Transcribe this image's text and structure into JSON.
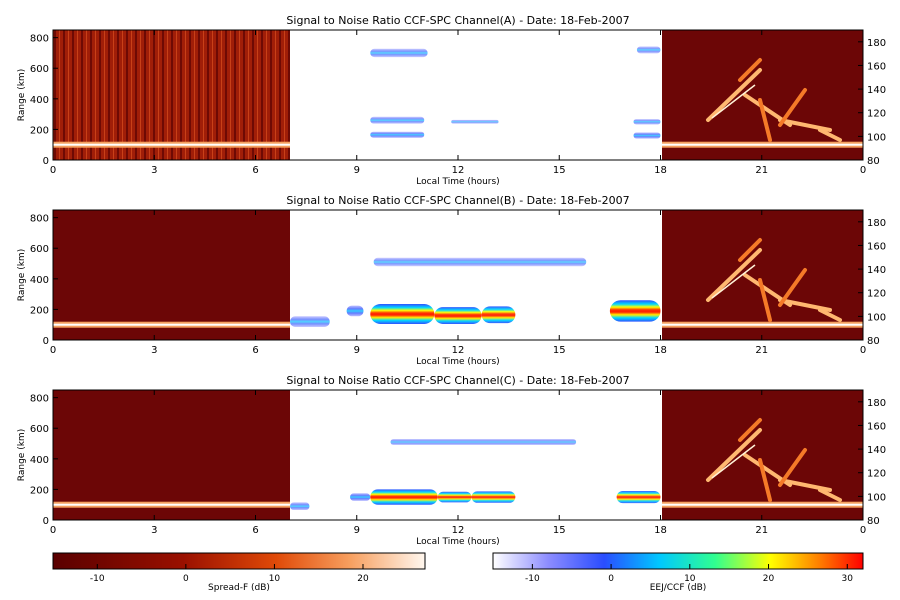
{
  "chart_data": [
    {
      "type": "heatmap",
      "title": "Signal to Noise Ratio CCF-SPC Channel(A) - Date: 18-Feb-2007",
      "xlabel": "Local Time (hours)",
      "ylabel": "Range (km)",
      "xticks": [
        "0",
        "3",
        "6",
        "9",
        "12",
        "15",
        "18",
        "21",
        "0"
      ],
      "yticks_left": [
        "0",
        "200",
        "400",
        "600",
        "800"
      ],
      "yticks_right": [
        "80",
        "100",
        "120",
        "140",
        "160",
        "180"
      ],
      "xlim": [
        0,
        24
      ],
      "ylim_left": [
        0,
        850
      ],
      "ylim_right": [
        80,
        190
      ],
      "blobs": [
        {
          "x0": 9.4,
          "x1": 11.1,
          "y": 700,
          "h": 55,
          "level": 0.25
        },
        {
          "x0": 9.4,
          "x1": 11.0,
          "y": 260,
          "h": 45,
          "level": 0.25
        },
        {
          "x0": 9.4,
          "x1": 11.0,
          "y": 165,
          "h": 40,
          "level": 0.4
        },
        {
          "x0": 11.8,
          "x1": 13.2,
          "y": 250,
          "h": 25,
          "level": 0.1
        },
        {
          "x0": 17.3,
          "x1": 18.0,
          "y": 720,
          "h": 45,
          "level": 0.2
        },
        {
          "x0": 17.2,
          "x1": 18.0,
          "y": 250,
          "h": 35,
          "level": 0.25
        },
        {
          "x0": 17.2,
          "x1": 18.0,
          "y": 160,
          "h": 40,
          "level": 0.45
        }
      ]
    },
    {
      "type": "heatmap",
      "title": "Signal to Noise Ratio CCF-SPC Channel(B) - Date: 18-Feb-2007",
      "xlabel": "Local Time (hours)",
      "ylabel": "Range (km)",
      "xticks": [
        "0",
        "3",
        "6",
        "9",
        "12",
        "15",
        "18",
        "21",
        "0"
      ],
      "yticks_left": [
        "0",
        "200",
        "400",
        "600",
        "800"
      ],
      "yticks_right": [
        "80",
        "100",
        "120",
        "140",
        "160",
        "180"
      ],
      "xlim": [
        0,
        24
      ],
      "ylim_left": [
        0,
        850
      ],
      "ylim_right": [
        80,
        190
      ],
      "blobs": [
        {
          "x0": 9.5,
          "x1": 15.8,
          "y": 510,
          "h": 55,
          "level": 0.2
        },
        {
          "x0": 9.4,
          "x1": 11.3,
          "y": 170,
          "h": 130,
          "level": 1.0
        },
        {
          "x0": 11.3,
          "x1": 12.7,
          "y": 160,
          "h": 110,
          "level": 0.95
        },
        {
          "x0": 12.7,
          "x1": 13.7,
          "y": 165,
          "h": 110,
          "level": 0.9
        },
        {
          "x0": 8.7,
          "x1": 9.2,
          "y": 190,
          "h": 70,
          "level": 0.55
        },
        {
          "x0": 7.0,
          "x1": 8.2,
          "y": 120,
          "h": 70,
          "level": 0.3
        },
        {
          "x0": 16.5,
          "x1": 18.0,
          "y": 190,
          "h": 140,
          "level": 1.0
        }
      ]
    },
    {
      "type": "heatmap",
      "title": "Signal to Noise Ratio CCF-SPC Channel(C) - Date: 18-Feb-2007",
      "xlabel": "Local Time (hours)",
      "ylabel": "Range (km)",
      "xticks": [
        "0",
        "3",
        "6",
        "9",
        "12",
        "15",
        "18",
        "21",
        "0"
      ],
      "yticks_left": [
        "0",
        "200",
        "400",
        "600",
        "800"
      ],
      "yticks_right": [
        "80",
        "100",
        "120",
        "140",
        "160",
        "180"
      ],
      "xlim": [
        0,
        24
      ],
      "ylim_left": [
        0,
        850
      ],
      "ylim_right": [
        80,
        190
      ],
      "blobs": [
        {
          "x0": 10.0,
          "x1": 15.5,
          "y": 510,
          "h": 40,
          "level": 0.15
        },
        {
          "x0": 9.4,
          "x1": 11.4,
          "y": 150,
          "h": 100,
          "level": 0.95
        },
        {
          "x0": 11.4,
          "x1": 12.4,
          "y": 150,
          "h": 70,
          "level": 0.85
        },
        {
          "x0": 12.4,
          "x1": 13.7,
          "y": 150,
          "h": 75,
          "level": 0.85
        },
        {
          "x0": 8.8,
          "x1": 9.4,
          "y": 150,
          "h": 50,
          "level": 0.5
        },
        {
          "x0": 7.0,
          "x1": 7.6,
          "y": 90,
          "h": 50,
          "level": 0.3
        },
        {
          "x0": 16.7,
          "x1": 18.0,
          "y": 150,
          "h": 80,
          "level": 0.85
        }
      ]
    }
  ],
  "colorbars": {
    "spread_f": {
      "label": "Spread-F (dB)",
      "ticks": [
        "-10",
        "0",
        "10",
        "20"
      ],
      "range": [
        -15,
        27
      ]
    },
    "eej_ccf": {
      "label": "EEJ/CCF (dB)",
      "ticks": [
        "-10",
        "0",
        "10",
        "20",
        "30"
      ],
      "range": [
        -15,
        32
      ]
    }
  }
}
